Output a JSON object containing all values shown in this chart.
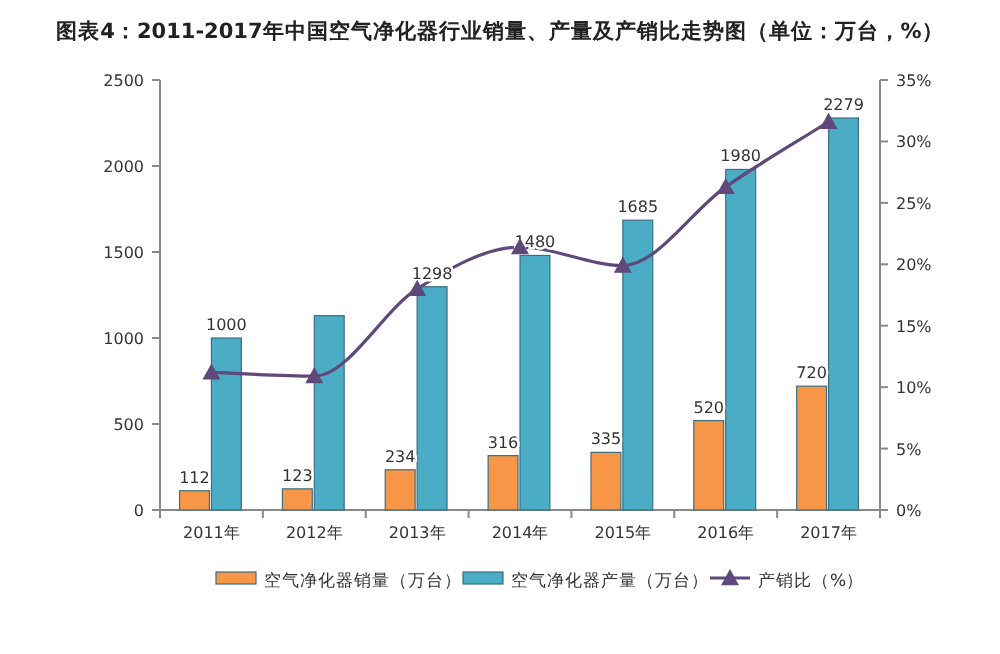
{
  "chart_data": {
    "type": "bar",
    "title": "图表4：2011-2017年中国空气净化器行业销量、产量及产销比走势图（单位：万台，%）",
    "categories": [
      "2011年",
      "2012年",
      "2013年",
      "2014年",
      "2015年",
      "2016年",
      "2017年"
    ],
    "series": [
      {
        "name": "空气净化器销量（万台）",
        "color": "#f79646",
        "values": [
          112,
          123,
          234,
          316,
          335,
          520,
          720
        ],
        "value_labels": [
          "112",
          "123",
          "234",
          "316",
          "335",
          "520",
          "720"
        ]
      },
      {
        "name": "空气净化器产量（万台）",
        "color": "#4bacc6",
        "values": [
          1000,
          1130,
          1298,
          1480,
          1685,
          1980,
          2279
        ],
        "value_labels": [
          "1000",
          null,
          "1298",
          "1480",
          "1685",
          "1980",
          "2279"
        ]
      },
      {
        "name": "产销比（%）",
        "color": "#5f497a",
        "type": "line",
        "axis": "y2",
        "marker": "triangle",
        "values": [
          11.2,
          10.9,
          18.0,
          21.4,
          19.9,
          26.3,
          31.6
        ]
      }
    ],
    "ylim": [
      0,
      2500
    ],
    "yticks": [
      0,
      500,
      1000,
      1500,
      2000,
      2500
    ],
    "y2lim": [
      0,
      35
    ],
    "y2ticks": [
      {
        "value": 0,
        "label": "0%"
      },
      {
        "value": 5,
        "label": "5%"
      },
      {
        "value": 10,
        "label": "10%"
      },
      {
        "value": 15,
        "label": "15%"
      },
      {
        "value": 20,
        "label": "20%"
      },
      {
        "value": 25,
        "label": "25%"
      },
      {
        "value": 30,
        "label": "30%"
      },
      {
        "value": 35,
        "label": "35%"
      }
    ],
    "grid": false,
    "legend": "bottom"
  }
}
